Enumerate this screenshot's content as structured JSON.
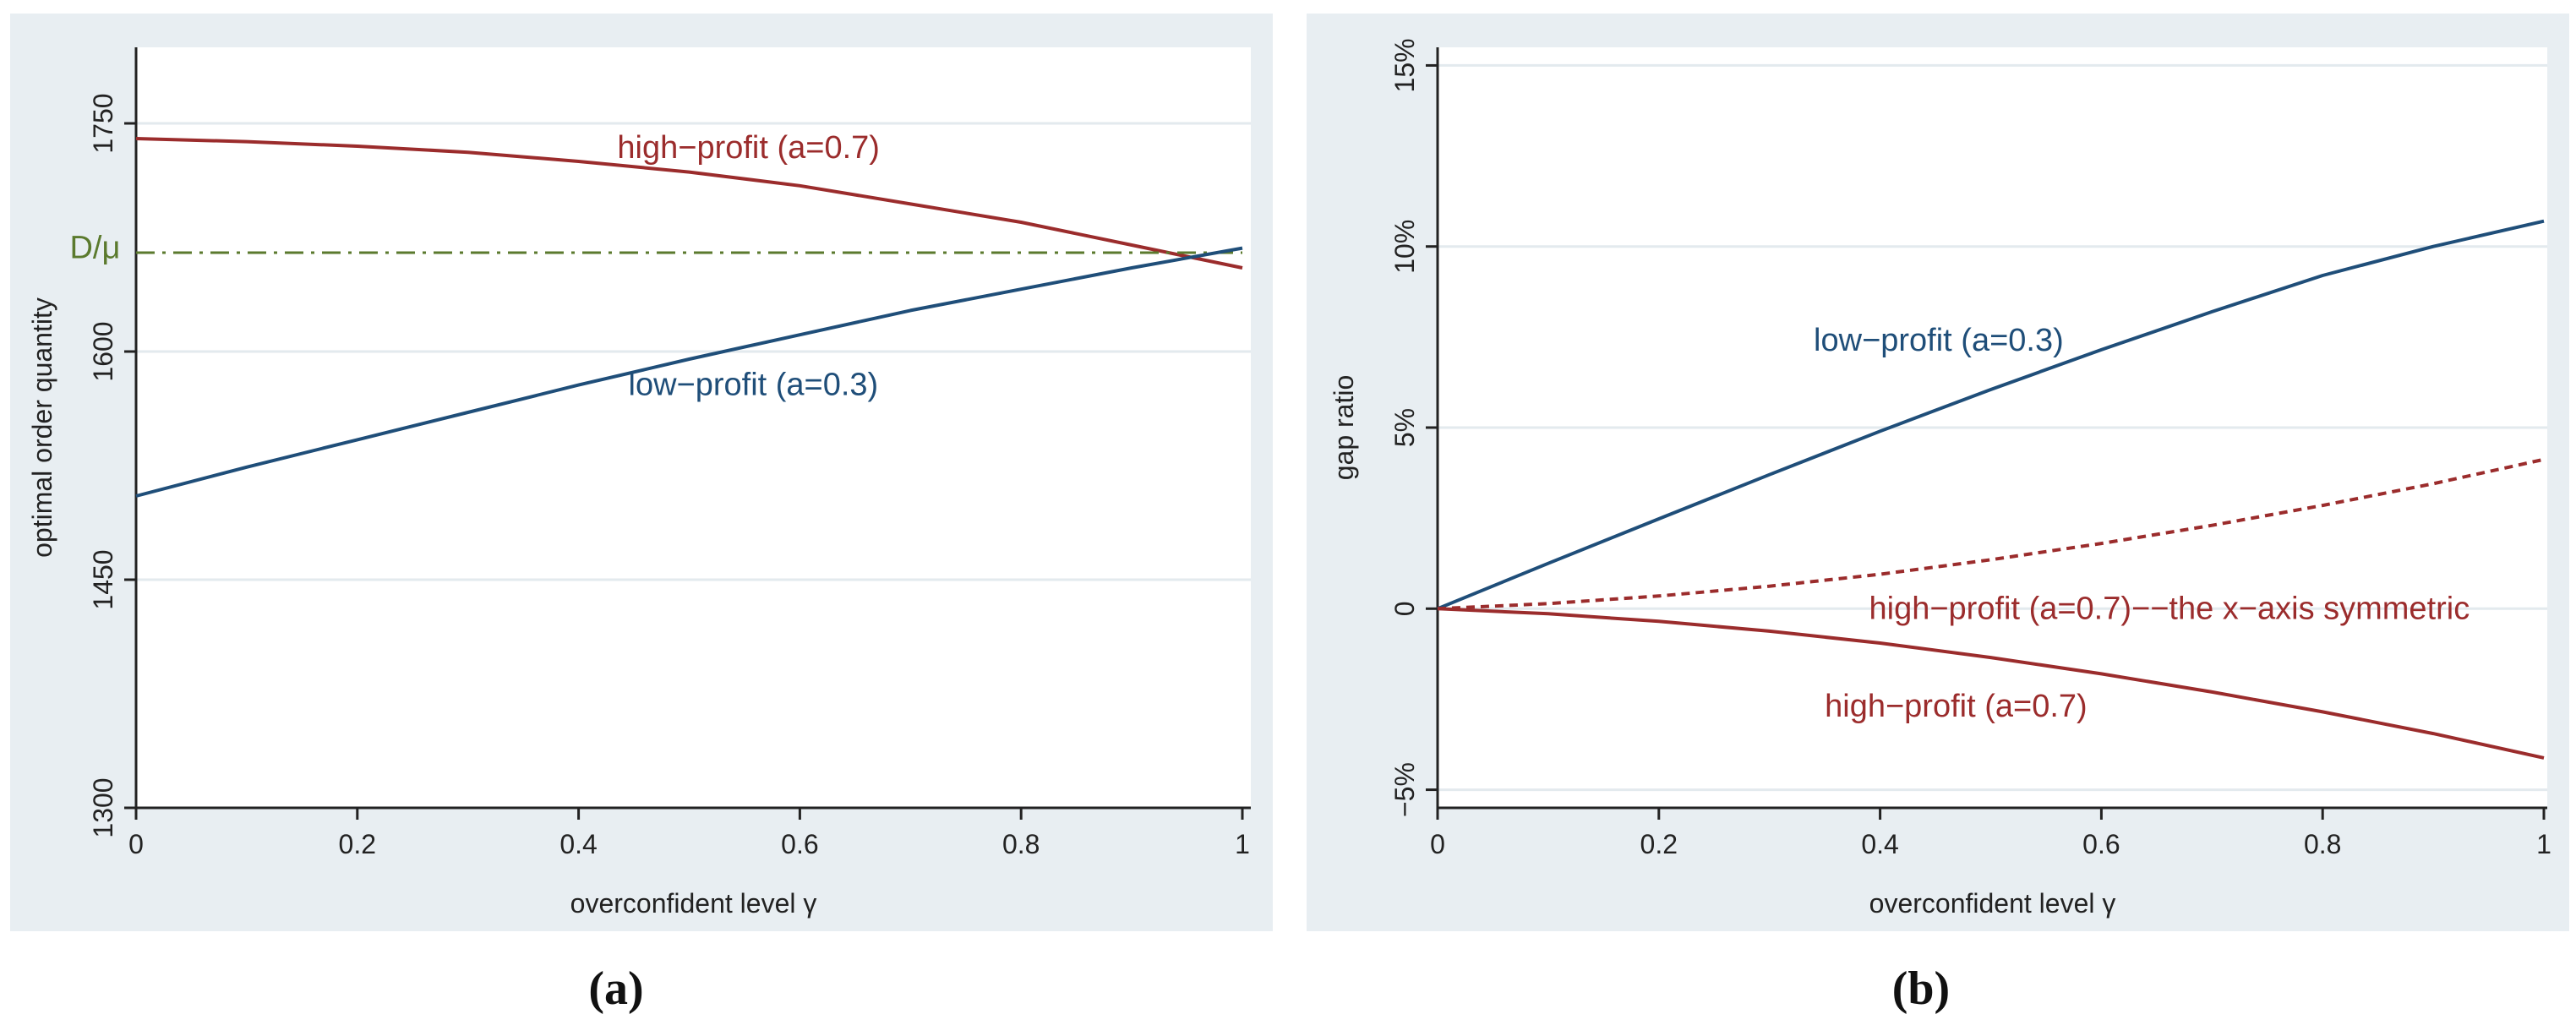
{
  "colors": {
    "panel_bg": "#e8eef2",
    "plot_bg": "#ffffff",
    "grid": "#e3eaee",
    "axis": "#222222",
    "low_profit": "#1f4e79",
    "high_profit": "#9b2c2c",
    "benchmark": "#5b7a2e"
  },
  "captions": {
    "a": "(a)",
    "b": "(b)"
  },
  "chart_data": [
    {
      "id": "a",
      "type": "line",
      "xlabel": "overconfident level γ",
      "ylabel": "optimal order quantity",
      "xlim": [
        0,
        1
      ],
      "ylim": [
        1300,
        1800
      ],
      "xticks": [
        0,
        0.2,
        0.4,
        0.6,
        0.8,
        1
      ],
      "xtick_labels": [
        "0",
        "0.2",
        "0.4",
        "0.6",
        "0.8",
        "1"
      ],
      "yticks": [
        1300,
        1450,
        1600,
        1750
      ],
      "ytick_labels": [
        "1300",
        "1450",
        "1600",
        "1750"
      ],
      "grid": true,
      "series": [
        {
          "name": "high-profit (a=0.7)",
          "label": "high−profit (a=0.7)",
          "style": "solid",
          "color_key": "high_profit",
          "x": [
            0,
            0.1,
            0.2,
            0.3,
            0.4,
            0.5,
            0.6,
            0.7,
            0.8,
            0.9,
            1
          ],
          "values": [
            1740,
            1738,
            1735,
            1731,
            1725,
            1718,
            1709,
            1697,
            1685,
            1670,
            1655
          ]
        },
        {
          "name": "D/μ",
          "label": "D/μ",
          "style": "dashdot",
          "color_key": "benchmark",
          "x": [
            0,
            1
          ],
          "values": [
            1665,
            1665
          ]
        },
        {
          "name": "low-profit (a=0.3)",
          "label": "low−profit (a=0.3)",
          "style": "solid",
          "color_key": "low_profit",
          "x": [
            0,
            0.1,
            0.2,
            0.3,
            0.4,
            0.5,
            0.6,
            0.7,
            0.8,
            0.9,
            1
          ],
          "values": [
            1505,
            1524,
            1542,
            1560,
            1578,
            1595,
            1611,
            1627,
            1641,
            1655,
            1668
          ]
        }
      ],
      "annotations": [
        {
          "text": "high−profit (a=0.7)",
          "x": 0.435,
          "y": 1734,
          "color_key": "high_profit"
        },
        {
          "text": "low−profit (a=0.3)",
          "x": 0.445,
          "y": 1578,
          "color_key": "low_profit"
        },
        {
          "text": "D/μ",
          "x": -0.06,
          "y": 1668,
          "color_key": "benchmark"
        }
      ]
    },
    {
      "id": "b",
      "type": "line",
      "xlabel": "overconfident level γ",
      "ylabel": "gap ratio",
      "xlim": [
        0,
        1
      ],
      "ylim": [
        -0.055,
        0.155
      ],
      "xticks": [
        0,
        0.2,
        0.4,
        0.6,
        0.8,
        1
      ],
      "xtick_labels": [
        "0",
        "0.2",
        "0.4",
        "0.6",
        "0.8",
        "1"
      ],
      "yticks": [
        -0.05,
        0,
        0.05,
        0.1,
        0.15
      ],
      "ytick_labels": [
        "−5%",
        "0",
        "5%",
        "10%",
        "15%"
      ],
      "grid": true,
      "series": [
        {
          "name": "low-profit (a=0.3)",
          "label": "low−profit (a=0.3)",
          "style": "solid",
          "color_key": "low_profit",
          "x": [
            0,
            0.1,
            0.2,
            0.3,
            0.4,
            0.5,
            0.6,
            0.7,
            0.8,
            0.9,
            1
          ],
          "values": [
            0,
            0.0125,
            0.0248,
            0.037,
            0.049,
            0.0605,
            0.0715,
            0.082,
            0.092,
            0.1,
            0.107
          ]
        },
        {
          "name": "high-profit (a=0.7)--the x-axis symmetric",
          "label": "high−profit (a=0.7)−−the x−axis symmetric",
          "style": "dashed",
          "color_key": "high_profit",
          "x": [
            0,
            0.1,
            0.2,
            0.3,
            0.4,
            0.5,
            0.6,
            0.7,
            0.8,
            0.9,
            1
          ],
          "values": [
            0,
            0.0014,
            0.0035,
            0.0062,
            0.0095,
            0.0135,
            0.018,
            0.023,
            0.0285,
            0.0345,
            0.0412
          ]
        },
        {
          "name": "high-profit (a=0.7)",
          "label": "high−profit (a=0.7)",
          "style": "solid",
          "color_key": "high_profit",
          "x": [
            0,
            0.1,
            0.2,
            0.3,
            0.4,
            0.5,
            0.6,
            0.7,
            0.8,
            0.9,
            1
          ],
          "values": [
            0,
            -0.0014,
            -0.0035,
            -0.0062,
            -0.0095,
            -0.0135,
            -0.018,
            -0.023,
            -0.0285,
            -0.0345,
            -0.0412
          ]
        }
      ],
      "annotations": [
        {
          "text": "low−profit (a=0.3)",
          "x": 0.34,
          "y": 0.074,
          "color_key": "low_profit"
        },
        {
          "text": "high−profit (a=0.7)−−the x−axis symmetric",
          "x": 0.39,
          "y": 0.0,
          "color_key": "high_profit"
        },
        {
          "text": "high−profit (a=0.7)",
          "x": 0.35,
          "y": -0.027,
          "color_key": "high_profit"
        }
      ]
    }
  ]
}
